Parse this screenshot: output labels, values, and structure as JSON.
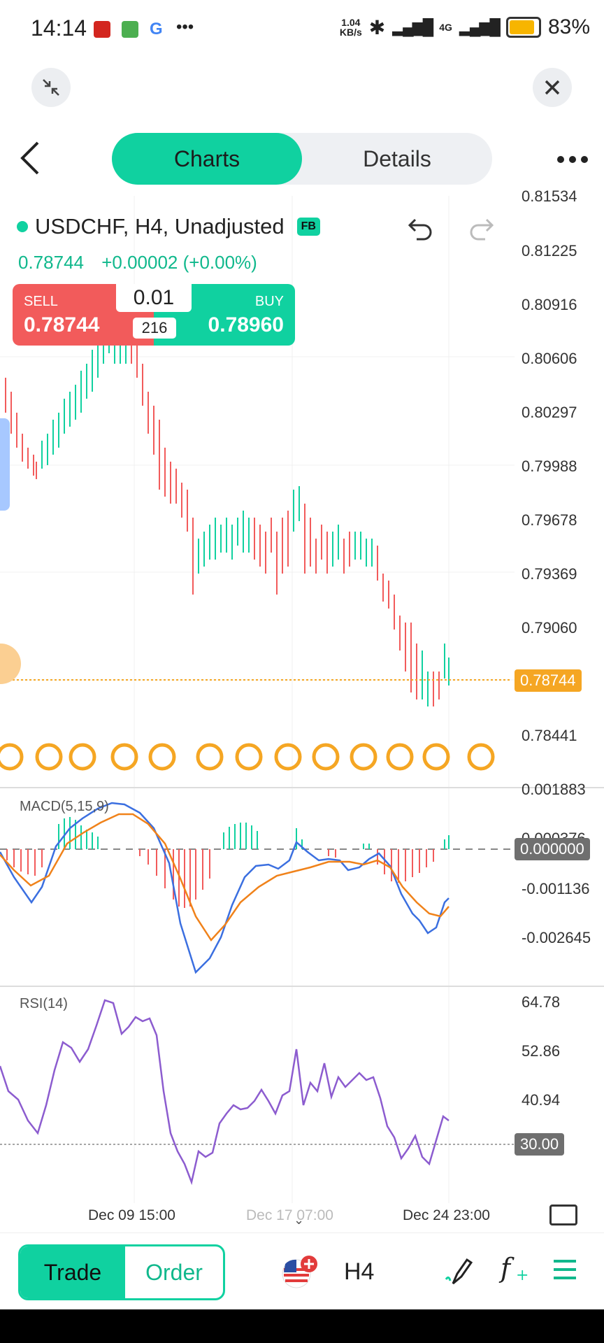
{
  "status_bar": {
    "time": "14:14",
    "net_speed_top": "1.04",
    "net_speed_bottom": "KB/s",
    "network": "4G",
    "battery": "83%"
  },
  "tabs": [
    {
      "label": "Charts",
      "active": true
    },
    {
      "label": "Details",
      "active": false
    }
  ],
  "symbol": {
    "title": "USDCHF, H4, Unadjusted",
    "badge": "FB",
    "last_price": "0.78744",
    "change": "+0.00002 (+0.00%)"
  },
  "trade_box": {
    "sell_label": "SELL",
    "sell_price": "0.78744",
    "buy_label": "BUY",
    "buy_price": "0.78960",
    "quantity": "0.01",
    "spread": "216"
  },
  "price_axis": {
    "labels": [
      "0.81534",
      "0.81225",
      "0.80916",
      "0.80606",
      "0.80297",
      "0.79988",
      "0.79678",
      "0.79369",
      "0.79060",
      "0.78441"
    ],
    "current_tag": "0.78744"
  },
  "macd": {
    "label": "MACD(5,15,9)",
    "axis": [
      "0.001883",
      "0.000376",
      "-0.001136",
      "-0.002645"
    ],
    "zero_tag": "0.000000"
  },
  "rsi": {
    "label": "RSI(14)",
    "axis": [
      "64.78",
      "52.86",
      "40.94"
    ],
    "tag": "30.00"
  },
  "time_axis": [
    "Dec 09 15:00",
    "Dec 17 07:00",
    "Dec 24 23:00"
  ],
  "bottom_bar": {
    "trade_label": "Trade",
    "order_label": "Order",
    "timeframe": "H4"
  },
  "colors": {
    "accent": "#10d1a0",
    "sell": "#f25b5b",
    "current_price": "#f5a623",
    "macd_line": "#3b6fe0",
    "signal_line": "#f0821a",
    "rsi_line": "#8c5ccf"
  }
}
